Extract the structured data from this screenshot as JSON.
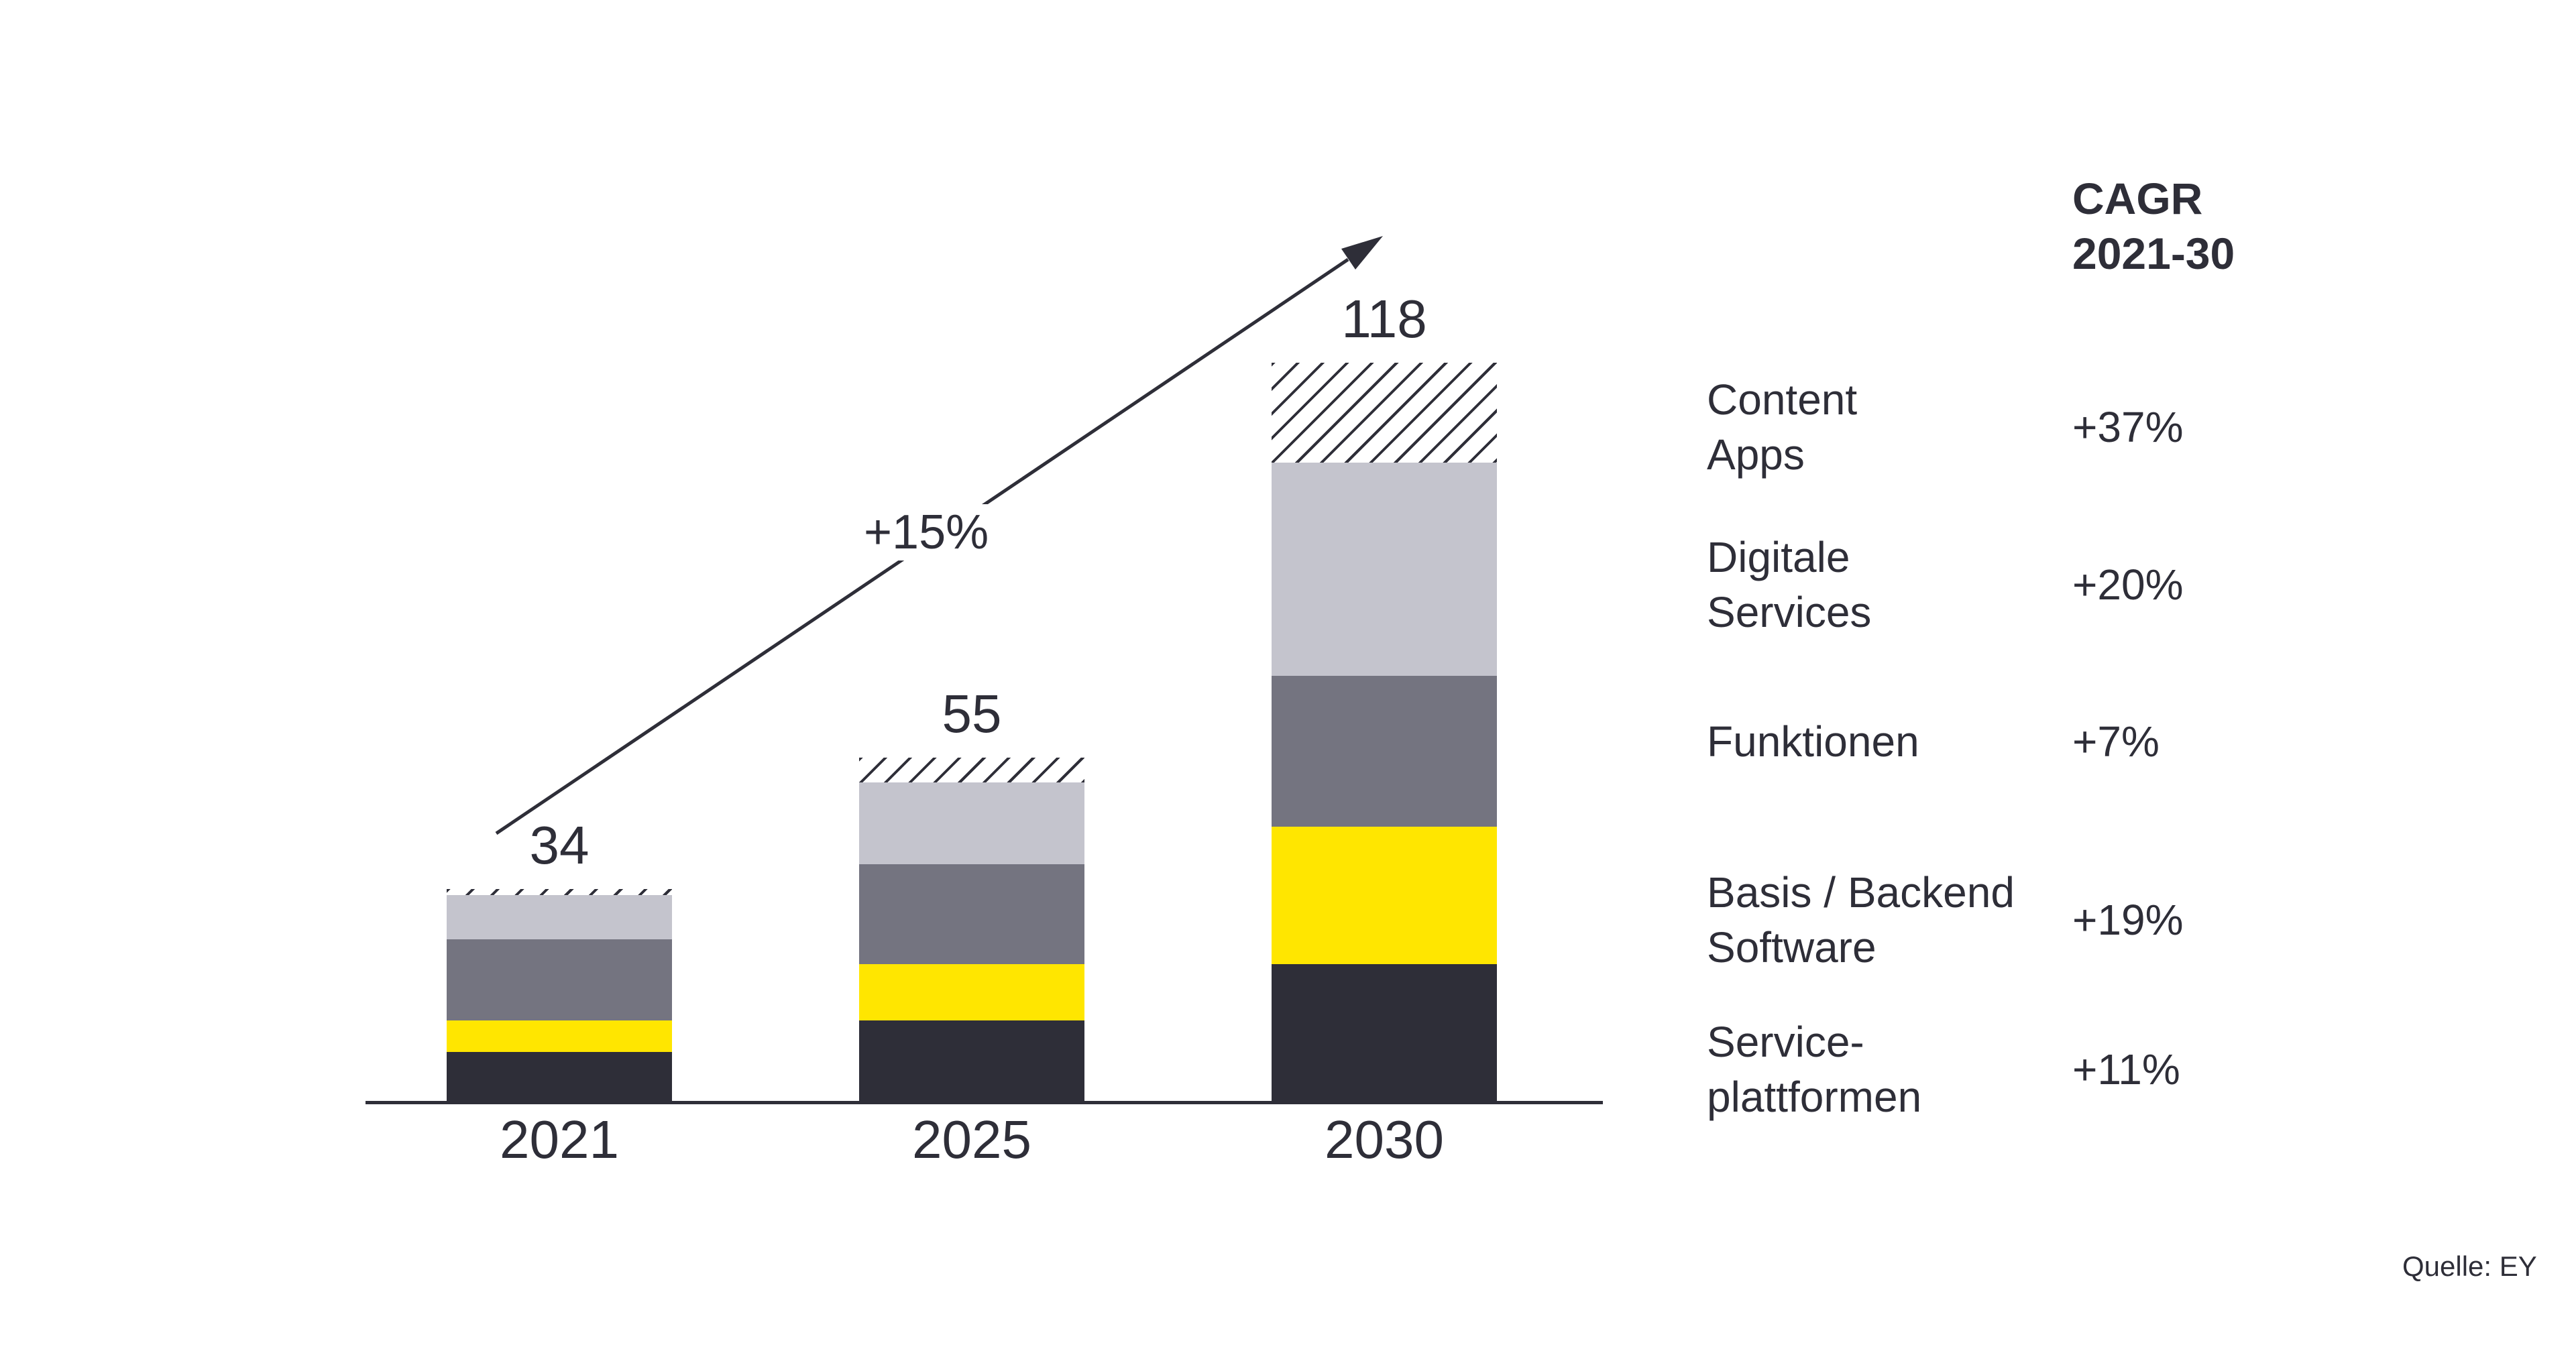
{
  "source": "Quelle: EY",
  "annotations": {
    "growth_label": "+15%"
  },
  "legend": {
    "header": "CAGR\n2021-30",
    "items": [
      {
        "label": "Content\nApps",
        "value": "+37%"
      },
      {
        "label": "Digitale\nServices",
        "value": "+20%"
      },
      {
        "label": "Funktionen",
        "value": "+7%"
      },
      {
        "label": "Basis / Backend\nSoftware",
        "value": "+19%"
      },
      {
        "label": "Service-\nplattformen",
        "value": "+11%"
      }
    ]
  },
  "chart_data": {
    "type": "bar",
    "stacked": true,
    "categories": [
      "2021",
      "2025",
      "2030"
    ],
    "totals": [
      34,
      55,
      118
    ],
    "series": [
      {
        "name": "Service-plattformen",
        "cagr": "+11%",
        "color": "#2e2e38",
        "values": [
          8,
          13,
          22
        ]
      },
      {
        "name": "Basis / Backend Software",
        "cagr": "+19%",
        "color": "#ffe600",
        "values": [
          5,
          9,
          22
        ]
      },
      {
        "name": "Funktionen",
        "cagr": "+7%",
        "color": "#747480",
        "values": [
          13,
          16,
          24
        ]
      },
      {
        "name": "Digitale Services",
        "cagr": "+20%",
        "color": "#c4c4cd",
        "values": [
          7,
          13,
          34
        ]
      },
      {
        "name": "Content Apps",
        "cagr": "+37%",
        "color": "#2e2e38",
        "pattern": "diagonal-stripes",
        "values": [
          1,
          4,
          16
        ]
      }
    ],
    "growth_arrow": {
      "label": "+15%",
      "from_category": "2021",
      "to_category": "2030"
    },
    "legend_position": "right",
    "gridlines": false,
    "xlabel": "",
    "ylabel": ""
  },
  "colors": {
    "text": "#2e2e38",
    "axis": "#2e2e38",
    "background": "#ffffff",
    "accent_yellow": "#ffe600",
    "gray_medium": "#747480",
    "gray_light": "#c4c4cd"
  }
}
